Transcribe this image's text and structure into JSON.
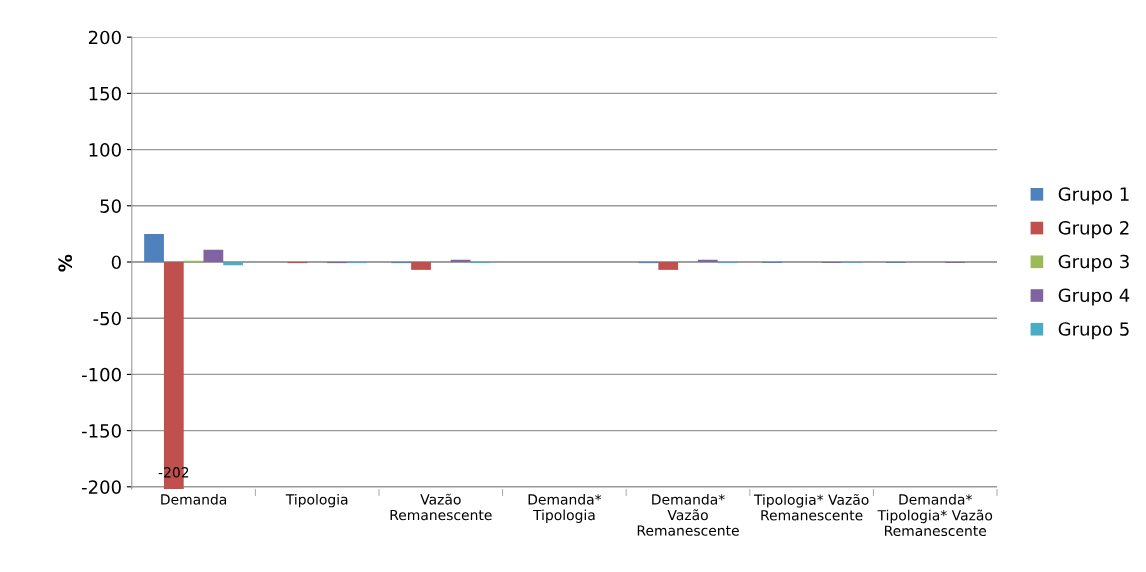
{
  "chart_data": {
    "type": "bar",
    "ylabel": "%",
    "categories": [
      "Demanda",
      "Tipologia",
      "Vazão\nRemanescente",
      "Demanda*\nTipologia",
      "Demanda*\nVazão\nRemanescente",
      "Tipologia* Vazão\nRemanescente",
      "Demanda*\nTipologia* Vazão\nRemanescente"
    ],
    "series": [
      {
        "name": "Grupo 1",
        "color": "#4f81bd",
        "values": [
          25,
          0,
          -1,
          0,
          -1,
          -1,
          -1
        ]
      },
      {
        "name": "Grupo 2",
        "color": "#c0504d",
        "values": [
          -202,
          -1,
          -7,
          0,
          -7,
          0,
          0
        ],
        "value_labels": [
          "-202",
          null,
          null,
          null,
          null,
          null,
          null
        ]
      },
      {
        "name": "Grupo 3",
        "color": "#9bbb59",
        "values": [
          1,
          0,
          0,
          0,
          0,
          0,
          0
        ]
      },
      {
        "name": "Grupo 4",
        "color": "#8064a2",
        "values": [
          11,
          -1,
          2,
          0,
          2,
          -1,
          -1
        ]
      },
      {
        "name": "Grupo 5",
        "color": "#4bacc6",
        "values": [
          -3,
          -1,
          -1,
          0,
          -1,
          -1,
          0
        ]
      }
    ],
    "ylim": [
      -202,
      200
    ],
    "yticks": [
      -200,
      -150,
      -100,
      -50,
      0,
      50,
      100,
      150,
      200
    ],
    "grid": "y",
    "legend": "right"
  }
}
